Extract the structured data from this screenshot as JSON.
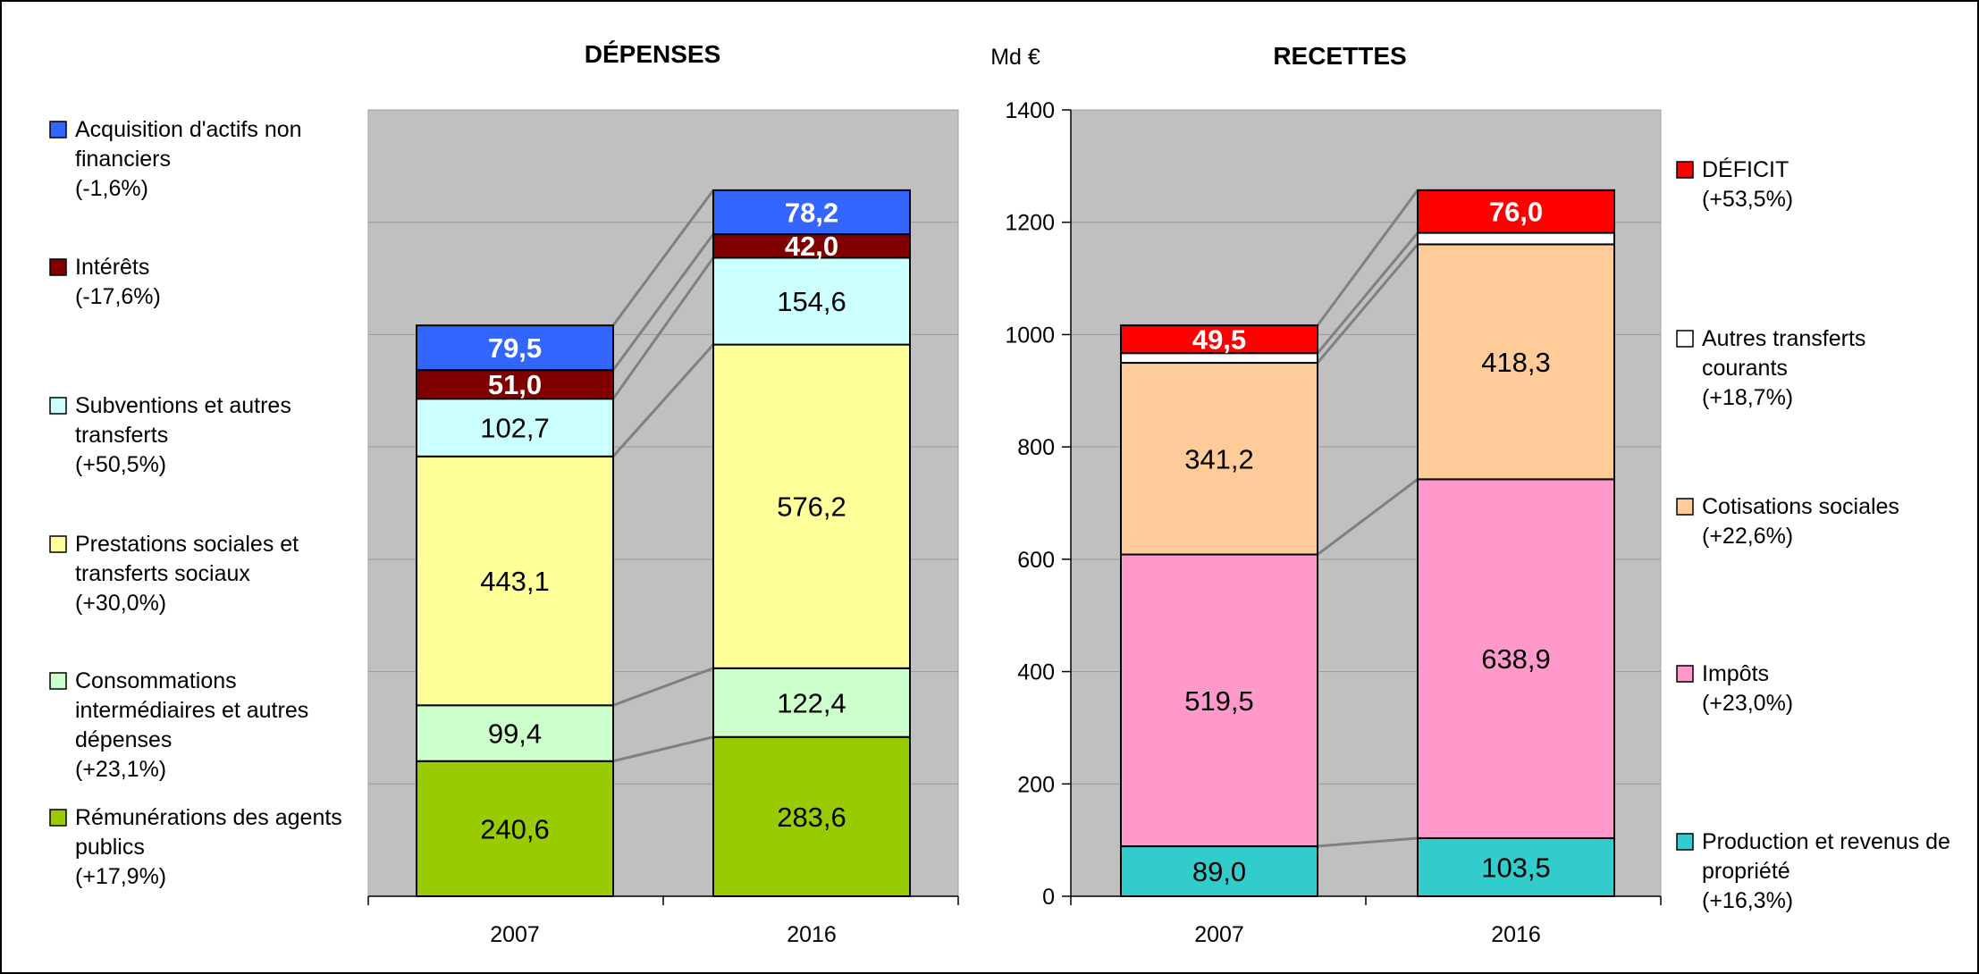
{
  "chart_data": [
    {
      "type": "bar",
      "stacked": true,
      "title": "DÉPENSES",
      "categories": [
        "2007",
        "2016"
      ],
      "series": [
        {
          "name": "Rémunérations des agents publics",
          "change": "(+17,9%)",
          "values": [
            240.6,
            283.6
          ],
          "labels": [
            "240,6",
            "283,6"
          ],
          "color": "#99cc00"
        },
        {
          "name": "Consommations intermédiaires et autres dépenses",
          "change": "(+23,1%)",
          "values": [
            99.4,
            122.4
          ],
          "labels": [
            "99,4",
            "122,4"
          ],
          "color": "#ccffcc"
        },
        {
          "name": "Prestations sociales et transferts sociaux",
          "change": "(+30,0%)",
          "values": [
            443.1,
            576.2
          ],
          "labels": [
            "443,1",
            "576,2"
          ],
          "color": "#ffff99"
        },
        {
          "name": "Subventions et autres transferts",
          "change": "(+50,5%)",
          "values": [
            102.7,
            154.6
          ],
          "labels": [
            "102,7",
            "154,6"
          ],
          "color": "#ccffff"
        },
        {
          "name": "Intérêts",
          "change": "(-17,6%)",
          "values": [
            51.0,
            42.0
          ],
          "labels": [
            "51,0",
            "42,0"
          ],
          "color": "#800000"
        },
        {
          "name": "Acquisition d'actifs non financiers",
          "change": "(-1,6%)",
          "values": [
            79.5,
            78.2
          ],
          "labels": [
            "79,5",
            "78,2"
          ],
          "color": "#3366ff"
        }
      ]
    },
    {
      "type": "bar",
      "stacked": true,
      "title": "RECETTES",
      "categories": [
        "2007",
        "2016"
      ],
      "ylabel": "Md €",
      "ylim": [
        0,
        1400
      ],
      "yticks": [
        "0",
        "200",
        "400",
        "600",
        "800",
        "1000",
        "1200",
        "1400"
      ],
      "grid": true,
      "series": [
        {
          "name": "Production et revenus de propriété",
          "change": "(+16,3%)",
          "values": [
            89.0,
            103.5
          ],
          "labels": [
            "89,0",
            "103,5"
          ],
          "color": "#33cccc"
        },
        {
          "name": "Impôts",
          "change": "(+23,0%)",
          "values": [
            519.5,
            638.9
          ],
          "labels": [
            "519,5",
            "638,9"
          ],
          "color": "#ff99cc"
        },
        {
          "name": "Cotisations sociales",
          "change": "(+22,6%)",
          "values": [
            341.2,
            418.3
          ],
          "labels": [
            "341,2",
            "418,3"
          ],
          "color": "#ffcc99"
        },
        {
          "name": "Autres transferts courants",
          "change": "(+18,7%)",
          "values": [
            17.2,
            20.4
          ],
          "labels": [
            "",
            ""
          ],
          "color": "#ffffff"
        },
        {
          "name": "DÉFICIT",
          "change": "(+53,5%)",
          "values": [
            49.5,
            76.0
          ],
          "labels": [
            "49,5",
            "76,0"
          ],
          "color": "#ff0000"
        }
      ]
    }
  ]
}
